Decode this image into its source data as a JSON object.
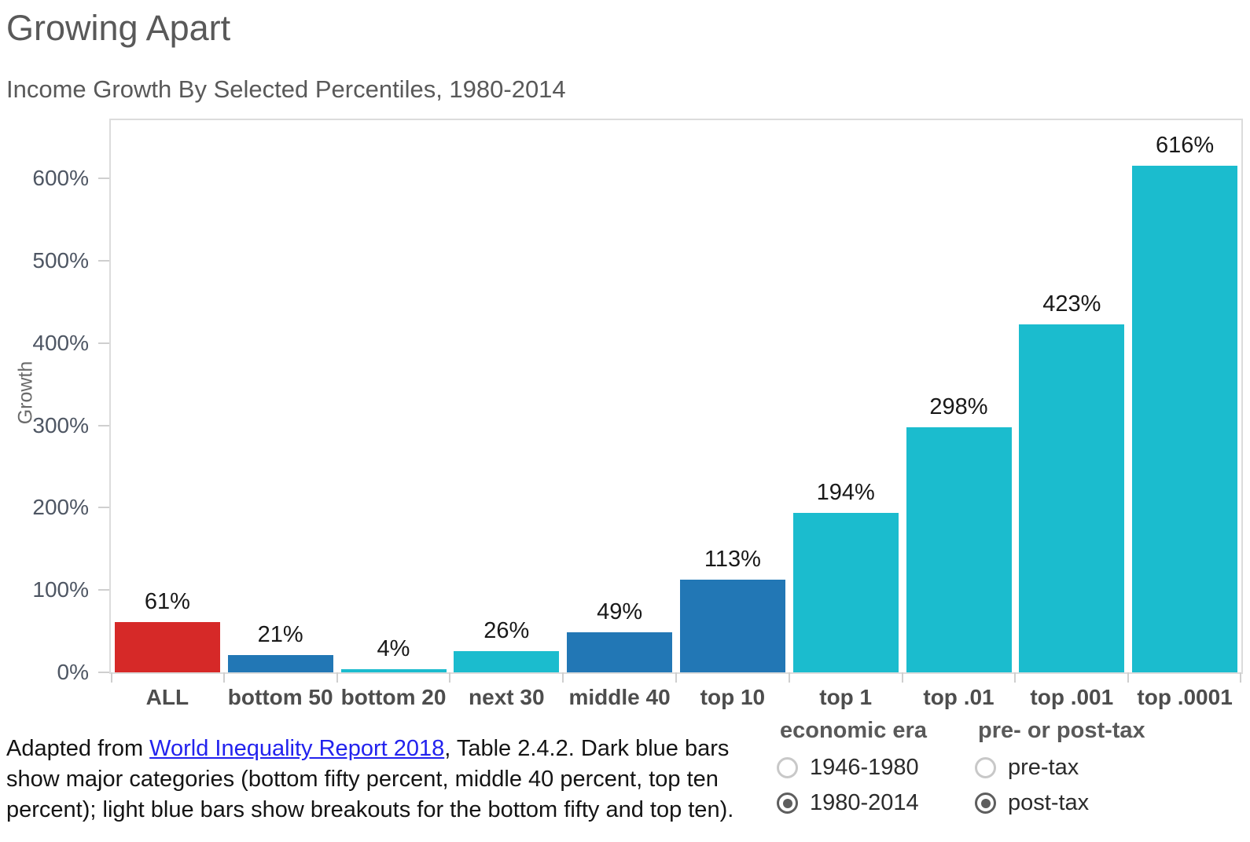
{
  "header": {
    "title": "Growing Apart",
    "subtitle": "Income Growth By Selected Percentiles, 1980-2014"
  },
  "chart_data": {
    "type": "bar",
    "title": "Growing Apart",
    "subtitle": "Income Growth By Selected Percentiles, 1980-2014",
    "xlabel": "",
    "ylabel": "Growth",
    "ylim": [
      0,
      671
    ],
    "yticks": [
      0,
      100,
      200,
      300,
      400,
      500,
      600
    ],
    "ytick_labels": [
      "0%",
      "100%",
      "200%",
      "300%",
      "400%",
      "500%",
      "600%"
    ],
    "grid": false,
    "legend": "none",
    "categories": [
      "ALL",
      "bottom 50",
      "bottom 20",
      "next 30",
      "middle 40",
      "top 10",
      "top 1",
      "top .01",
      "top .001",
      "top .0001"
    ],
    "values": [
      61,
      21,
      4,
      26,
      49,
      113,
      194,
      298,
      423,
      616
    ],
    "bar_labels": [
      "61%",
      "21%",
      "4%",
      "26%",
      "49%",
      "113%",
      "194%",
      "298%",
      "423%",
      "616%"
    ],
    "bar_colors": [
      "#d62928",
      "#2277b5",
      "#1bbcce",
      "#1bbcce",
      "#2277b5",
      "#2277b5",
      "#1bbcce",
      "#1bbcce",
      "#1bbcce",
      "#1bbcce"
    ],
    "color_meaning": {
      "red": "#d62928",
      "dark_blue_major_categories": "#2277b5",
      "light_blue_breakouts": "#1bbcce"
    }
  },
  "footnote": {
    "prefix": "Adapted from ",
    "link_text": "World Inequality Report 2018",
    "suffix": ", Table 2.4.2.  Dark blue bars show major categories (bottom fifty percent, middle 40 percent, top ten percent); light blue bars show breakouts for the bottom fifty and top ten)."
  },
  "controls": {
    "economic_era": {
      "label": "economic era",
      "options": [
        {
          "label": "1946-1980",
          "selected": false
        },
        {
          "label": "1980-2014",
          "selected": true
        }
      ]
    },
    "tax": {
      "label": "pre- or post-tax",
      "options": [
        {
          "label": "pre-tax",
          "selected": false
        },
        {
          "label": "post-tax",
          "selected": true
        }
      ]
    }
  }
}
